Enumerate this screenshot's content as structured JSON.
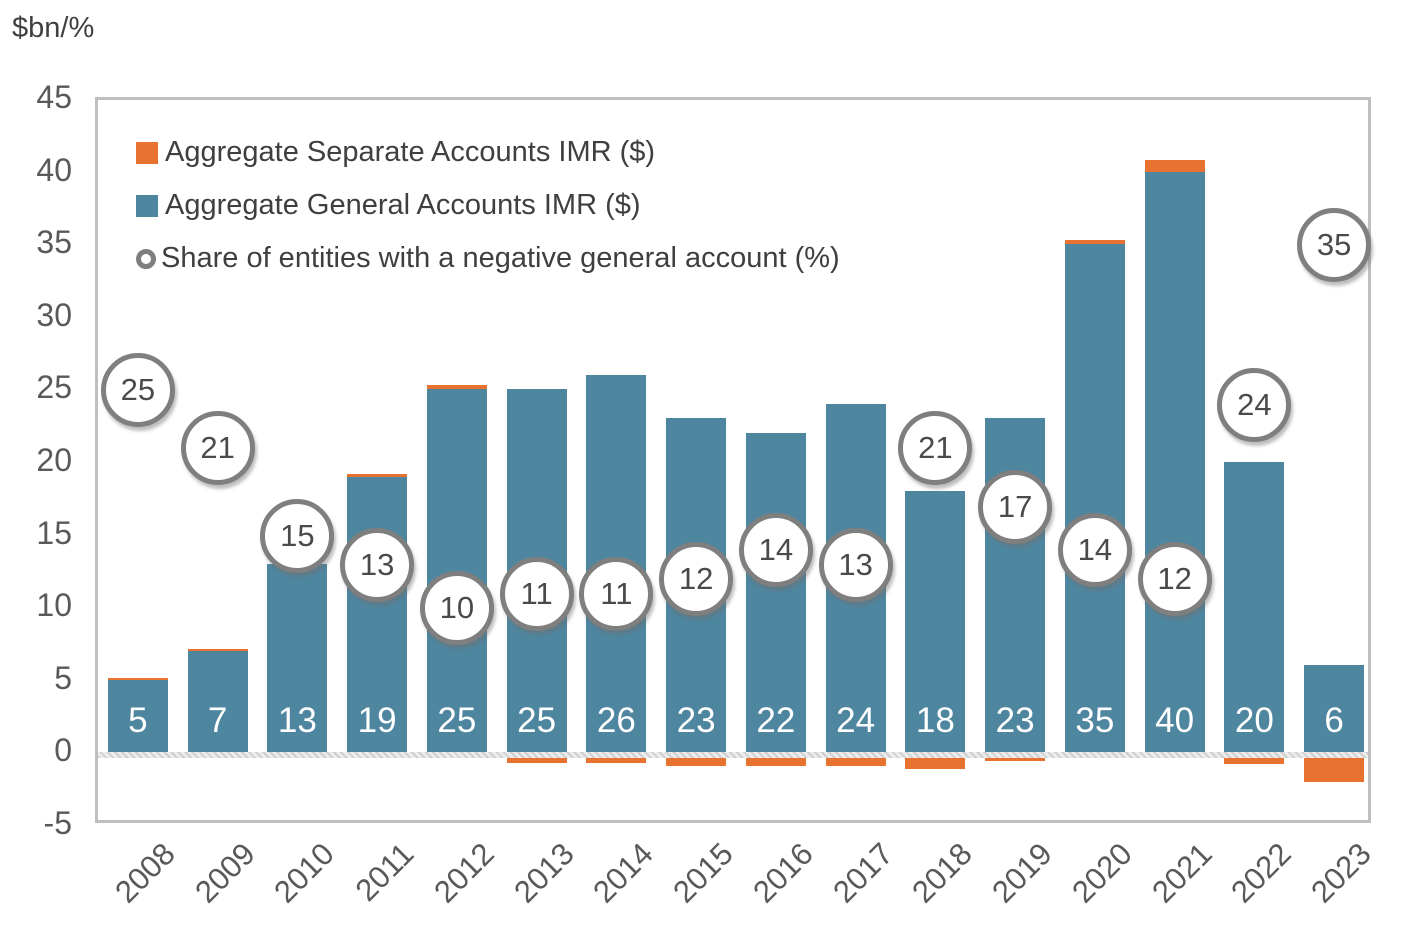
{
  "chart_data": {
    "type": "bar",
    "stacked": true,
    "title": "$bn/%",
    "categories": [
      "2008",
      "2009",
      "2010",
      "2011",
      "2012",
      "2013",
      "2014",
      "2015",
      "2016",
      "2017",
      "2018",
      "2019",
      "2020",
      "2021",
      "2022",
      "2023"
    ],
    "series": [
      {
        "name": "Aggregate Separate Accounts IMR ($)",
        "type": "bar",
        "color": "#E87230",
        "values": [
          0.15,
          0.15,
          0,
          0.2,
          0.3,
          -0.3,
          -0.35,
          -0.5,
          -0.5,
          -0.5,
          -0.7,
          -0.2,
          0.3,
          0.8,
          -0.4,
          -1.6
        ]
      },
      {
        "name": "Aggregate General Accounts IMR ($)",
        "type": "bar",
        "color": "#4E86A0",
        "data_labels": [
          5,
          7,
          13,
          19,
          25,
          25,
          26,
          23,
          22,
          24,
          18,
          23,
          35,
          40,
          20,
          6
        ],
        "values": [
          5,
          7,
          13,
          19,
          25,
          25,
          26,
          23,
          22,
          24,
          18,
          23,
          35,
          40,
          20,
          6
        ],
        "label_color": "#FFFFFF"
      },
      {
        "name": "Share of entities with a negative general account (%)",
        "type": "point",
        "marker": "circle-outline",
        "color": "#7F7F7F",
        "values": [
          25,
          21,
          15,
          13,
          10,
          11,
          11,
          12,
          14,
          13,
          21,
          17,
          14,
          12,
          24,
          35
        ]
      }
    ],
    "axis": {
      "y_label": "$bn/%",
      "ylim": [
        -5,
        45
      ],
      "yticks": [
        45,
        40,
        35,
        30,
        25,
        20,
        15,
        10,
        5,
        0,
        -5
      ],
      "x_tick_rotation": 45,
      "grid": false,
      "zero_line": true
    },
    "legend_position": "top-left-inside",
    "colors": {
      "separate_accounts": "#E87230",
      "general_accounts": "#4E86A0",
      "circle_border": "#7F7F7F",
      "axis_text": "#595959",
      "legend_text": "#3F3F3F",
      "plot_border": "#BFBFBF"
    }
  }
}
